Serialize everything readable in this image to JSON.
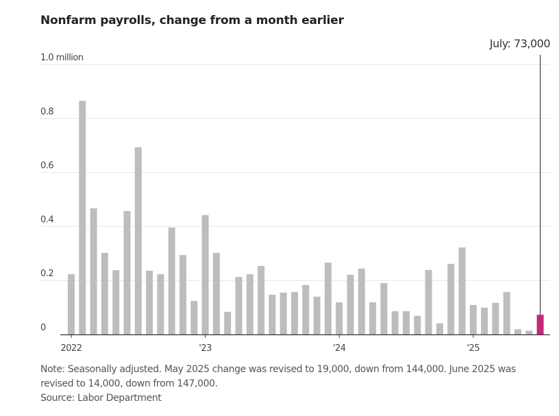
{
  "chart_data": {
    "type": "bar",
    "title": "Nonfarm payrolls, change from a month earlier",
    "xlabel": "",
    "ylabel": "",
    "ylim": [
      0,
      1.0
    ],
    "y_ticks": [
      {
        "value": 0,
        "label": "0"
      },
      {
        "value": 0.2,
        "label": "0.2"
      },
      {
        "value": 0.4,
        "label": "0.4"
      },
      {
        "value": 0.6,
        "label": "0.6"
      },
      {
        "value": 0.8,
        "label": "0.8"
      },
      {
        "value": 1.0,
        "label": "1.0 million"
      }
    ],
    "x_ticks": [
      {
        "index": 0,
        "label": "2022"
      },
      {
        "index": 12,
        "label": "'23"
      },
      {
        "index": 24,
        "label": "'24"
      },
      {
        "index": 36,
        "label": "'25"
      }
    ],
    "grid": true,
    "categories": [
      "Jan 2022",
      "Feb 2022",
      "Mar 2022",
      "Apr 2022",
      "May 2022",
      "Jun 2022",
      "Jul 2022",
      "Aug 2022",
      "Sep 2022",
      "Oct 2022",
      "Nov 2022",
      "Dec 2022",
      "Jan 2023",
      "Feb 2023",
      "Mar 2023",
      "Apr 2023",
      "May 2023",
      "Jun 2023",
      "Jul 2023",
      "Aug 2023",
      "Sep 2023",
      "Oct 2023",
      "Nov 2023",
      "Dec 2023",
      "Jan 2024",
      "Feb 2024",
      "Mar 2024",
      "Apr 2024",
      "May 2024",
      "Jun 2024",
      "Jul 2024",
      "Aug 2024",
      "Sep 2024",
      "Oct 2024",
      "Nov 2024",
      "Dec 2024",
      "Jan 2025",
      "Feb 2025",
      "Mar 2025",
      "Apr 2025",
      "May 2025",
      "Jun 2025",
      "Jul 2025"
    ],
    "values": [
      0.223,
      0.865,
      0.467,
      0.302,
      0.238,
      0.457,
      0.693,
      0.236,
      0.223,
      0.396,
      0.294,
      0.124,
      0.442,
      0.302,
      0.084,
      0.213,
      0.223,
      0.254,
      0.147,
      0.155,
      0.157,
      0.183,
      0.14,
      0.266,
      0.119,
      0.221,
      0.244,
      0.119,
      0.19,
      0.086,
      0.086,
      0.069,
      0.239,
      0.041,
      0.261,
      0.322,
      0.109,
      0.099,
      0.117,
      0.157,
      0.019,
      0.014,
      0.073
    ],
    "highlight": {
      "index": 42,
      "label": "July: 73,000",
      "color": "#c4287a"
    },
    "bar_color": "#bdbdbd",
    "grid_color": "#e6e6e6",
    "axis_color": "#333333"
  },
  "notes": {
    "line1": "Note: Seasonally adjusted. May 2025 change was revised to 19,000, down from 144,000. June 2025 was",
    "line2": "revised to 14,000, down from 147,000.",
    "source": "Source: Labor Department"
  }
}
